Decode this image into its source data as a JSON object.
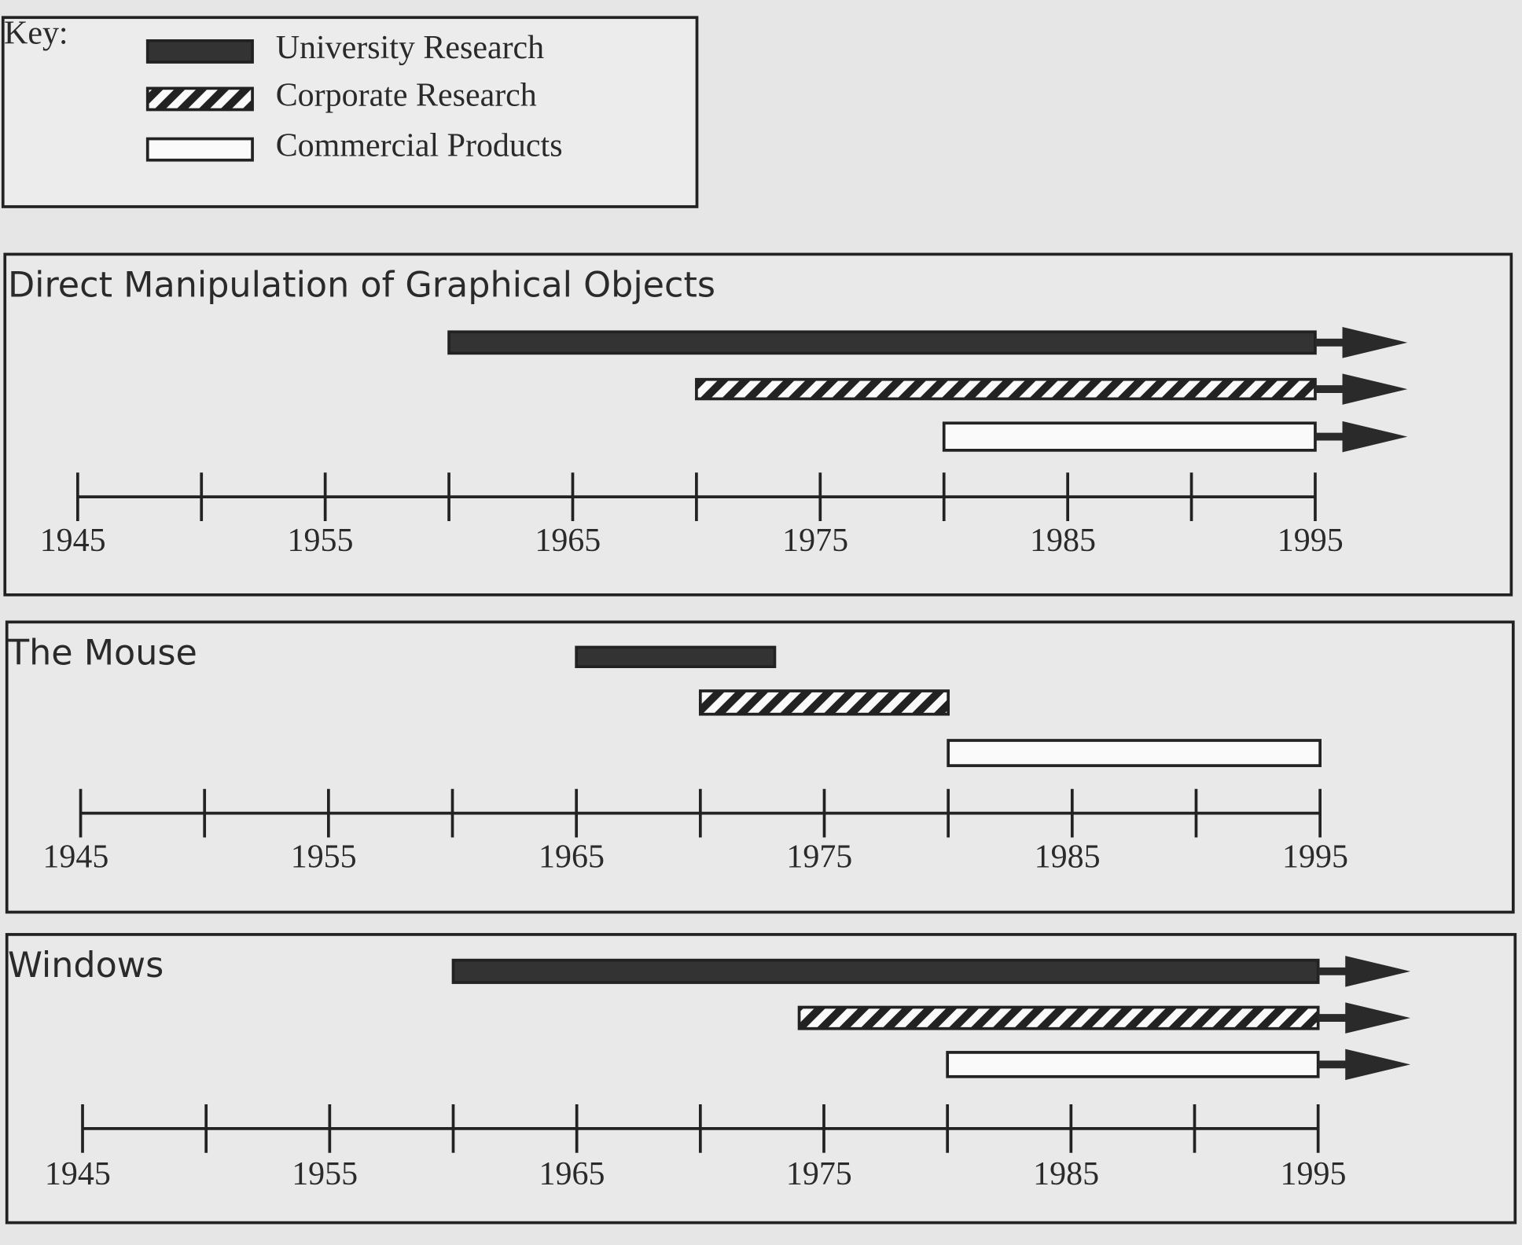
{
  "legend": {
    "title": "Key:",
    "entries": [
      {
        "name": "University Research",
        "color": "#333333",
        "pattern": "solid"
      },
      {
        "name": "Corporate Research",
        "color": "#222222",
        "pattern": "hatched"
      },
      {
        "name": "Commercial Products",
        "color": "#fafafa",
        "pattern": "open"
      }
    ]
  },
  "chart_data": [
    {
      "type": "timeline",
      "title": "Direct Manipulation of Graphical Objects",
      "bars": [
        {
          "start": 1960,
          "end": 1995,
          "ongoing": true
        },
        {
          "start": 1970,
          "end": 1995,
          "ongoing": true
        },
        {
          "start": 1980,
          "end": 1995,
          "ongoing": true
        }
      ],
      "xlim": [
        1945,
        1995
      ],
      "xticks": [
        1945,
        1955,
        1965,
        1975,
        1985,
        1995
      ],
      "xminor_ticks": [
        1950,
        1960,
        1970,
        1980,
        1990
      ]
    },
    {
      "type": "timeline",
      "title": "The Mouse",
      "bars": [
        {
          "start": 1965,
          "end": 1973,
          "ongoing": false
        },
        {
          "start": 1970,
          "end": 1980,
          "ongoing": false
        },
        {
          "start": 1980,
          "end": 1995,
          "ongoing": false
        }
      ],
      "xlim": [
        1945,
        1995
      ],
      "xticks": [
        1945,
        1955,
        1965,
        1975,
        1985,
        1995
      ],
      "xminor_ticks": [
        1950,
        1960,
        1970,
        1980,
        1990
      ]
    },
    {
      "type": "timeline",
      "title": "Windows",
      "bars": [
        {
          "start": 1960,
          "end": 1995,
          "ongoing": true
        },
        {
          "start": 1974,
          "end": 1995,
          "ongoing": true
        },
        {
          "start": 1980,
          "end": 1995,
          "ongoing": true
        }
      ],
      "xlim": [
        1945,
        1995
      ],
      "xticks": [
        1945,
        1955,
        1965,
        1975,
        1985,
        1995
      ],
      "xminor_ticks": [
        1950,
        1960,
        1970,
        1980,
        1990
      ]
    }
  ]
}
